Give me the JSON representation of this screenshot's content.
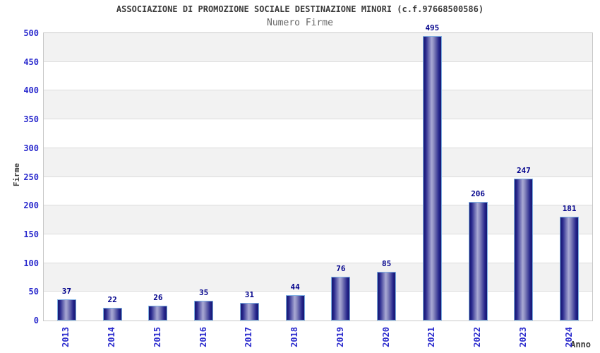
{
  "chart_data": {
    "type": "bar",
    "title": "ASSOCIAZIONE DI PROMOZIONE SOCIALE DESTINAZIONE MINORI (c.f.97668500586)",
    "subtitle": "Numero Firme",
    "categories": [
      "2013",
      "2014",
      "2015",
      "2016",
      "2017",
      "2018",
      "2019",
      "2020",
      "2021",
      "2022",
      "2023",
      "2024"
    ],
    "values": [
      37,
      22,
      26,
      35,
      31,
      44,
      76,
      85,
      495,
      206,
      247,
      181
    ],
    "xlabel": "Anno",
    "ylabel": "Firme",
    "ylim": [
      0,
      500
    ],
    "ytick_step": 50,
    "ytick_labels": [
      "0",
      "50",
      "100",
      "150",
      "200",
      "250",
      "300",
      "350",
      "400",
      "450",
      "500"
    ],
    "grid": "horizontal",
    "legend": "none",
    "colors": {
      "bar_dark": "#17176e",
      "bar_mid": "#a9a9d4",
      "bar_border": "#7fb0e3",
      "band_gray": "#f2f2f2",
      "band_white": "#ffffff",
      "gridline": "#dcdcdc",
      "plot_border": "#c8c8c8",
      "tick_label": "#2a2acd",
      "value_label": "#00008b",
      "axis_title": "#3c3c3c",
      "title": "#3a3a3a",
      "subtitle": "#666666"
    }
  }
}
